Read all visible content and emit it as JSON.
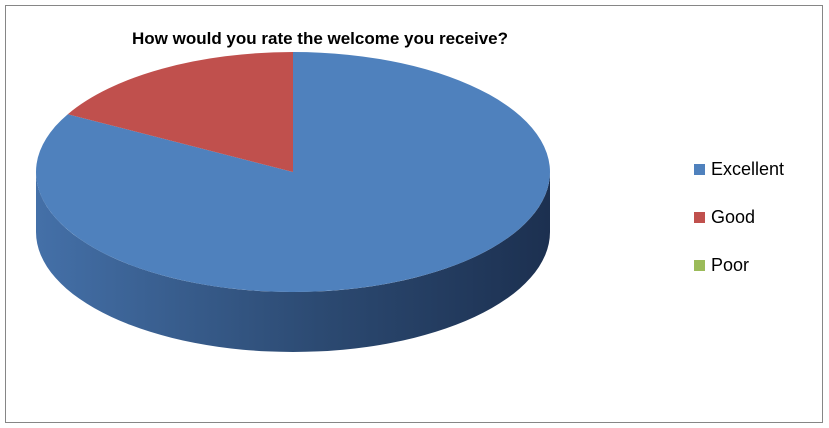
{
  "chart_data": {
    "type": "pie",
    "title": "How would you rate the welcome you receive?",
    "categories": [
      "Excellent",
      "Good",
      "Poor"
    ],
    "values": [
      83,
      17,
      0
    ],
    "colors": [
      "#4F81BD",
      "#C0504D",
      "#9BBB59"
    ],
    "dark_colors": [
      "#2B4A70",
      "#7A2E2C",
      "#5E7A30"
    ],
    "legend_position": "right",
    "style": "3d"
  }
}
